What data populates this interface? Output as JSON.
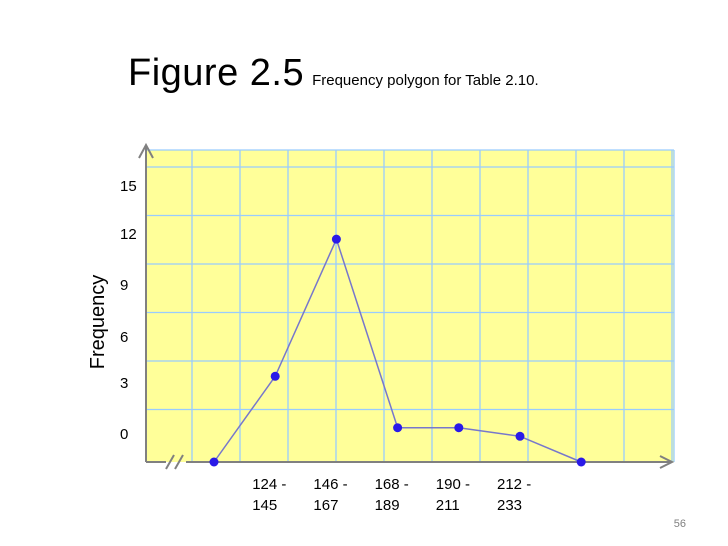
{
  "slide": {
    "title_main": "Figure 2.5",
    "title_sub": "Frequency polygon for Table 2.10.",
    "number": "56"
  },
  "colors": {
    "plot_bg": "#FFFF99",
    "grid": "#99CCFF",
    "axis": "#808080",
    "line": "#7777CC",
    "marker": "#2A1AE8"
  },
  "chart_data": {
    "type": "line",
    "title": "",
    "xlabel": "",
    "ylabel": "Frequency",
    "yticks": [
      0,
      3,
      6,
      9,
      12,
      15
    ],
    "categories": [
      "",
      "124 - 145",
      "146 - 167",
      "168 - 189",
      "190 - 211",
      "212 - 233",
      ""
    ],
    "category_labels": [
      [
        "124 -",
        "145"
      ],
      [
        "146 -",
        "167"
      ],
      [
        "168 -",
        "189"
      ],
      [
        "190 -",
        "211"
      ],
      [
        "212 -",
        "233"
      ]
    ],
    "series": [
      {
        "values": [
          0,
          5,
          13,
          2,
          2,
          1.5,
          0
        ]
      }
    ],
    "ylim": [
      0,
      16
    ],
    "grid": true,
    "axis_break": true
  }
}
